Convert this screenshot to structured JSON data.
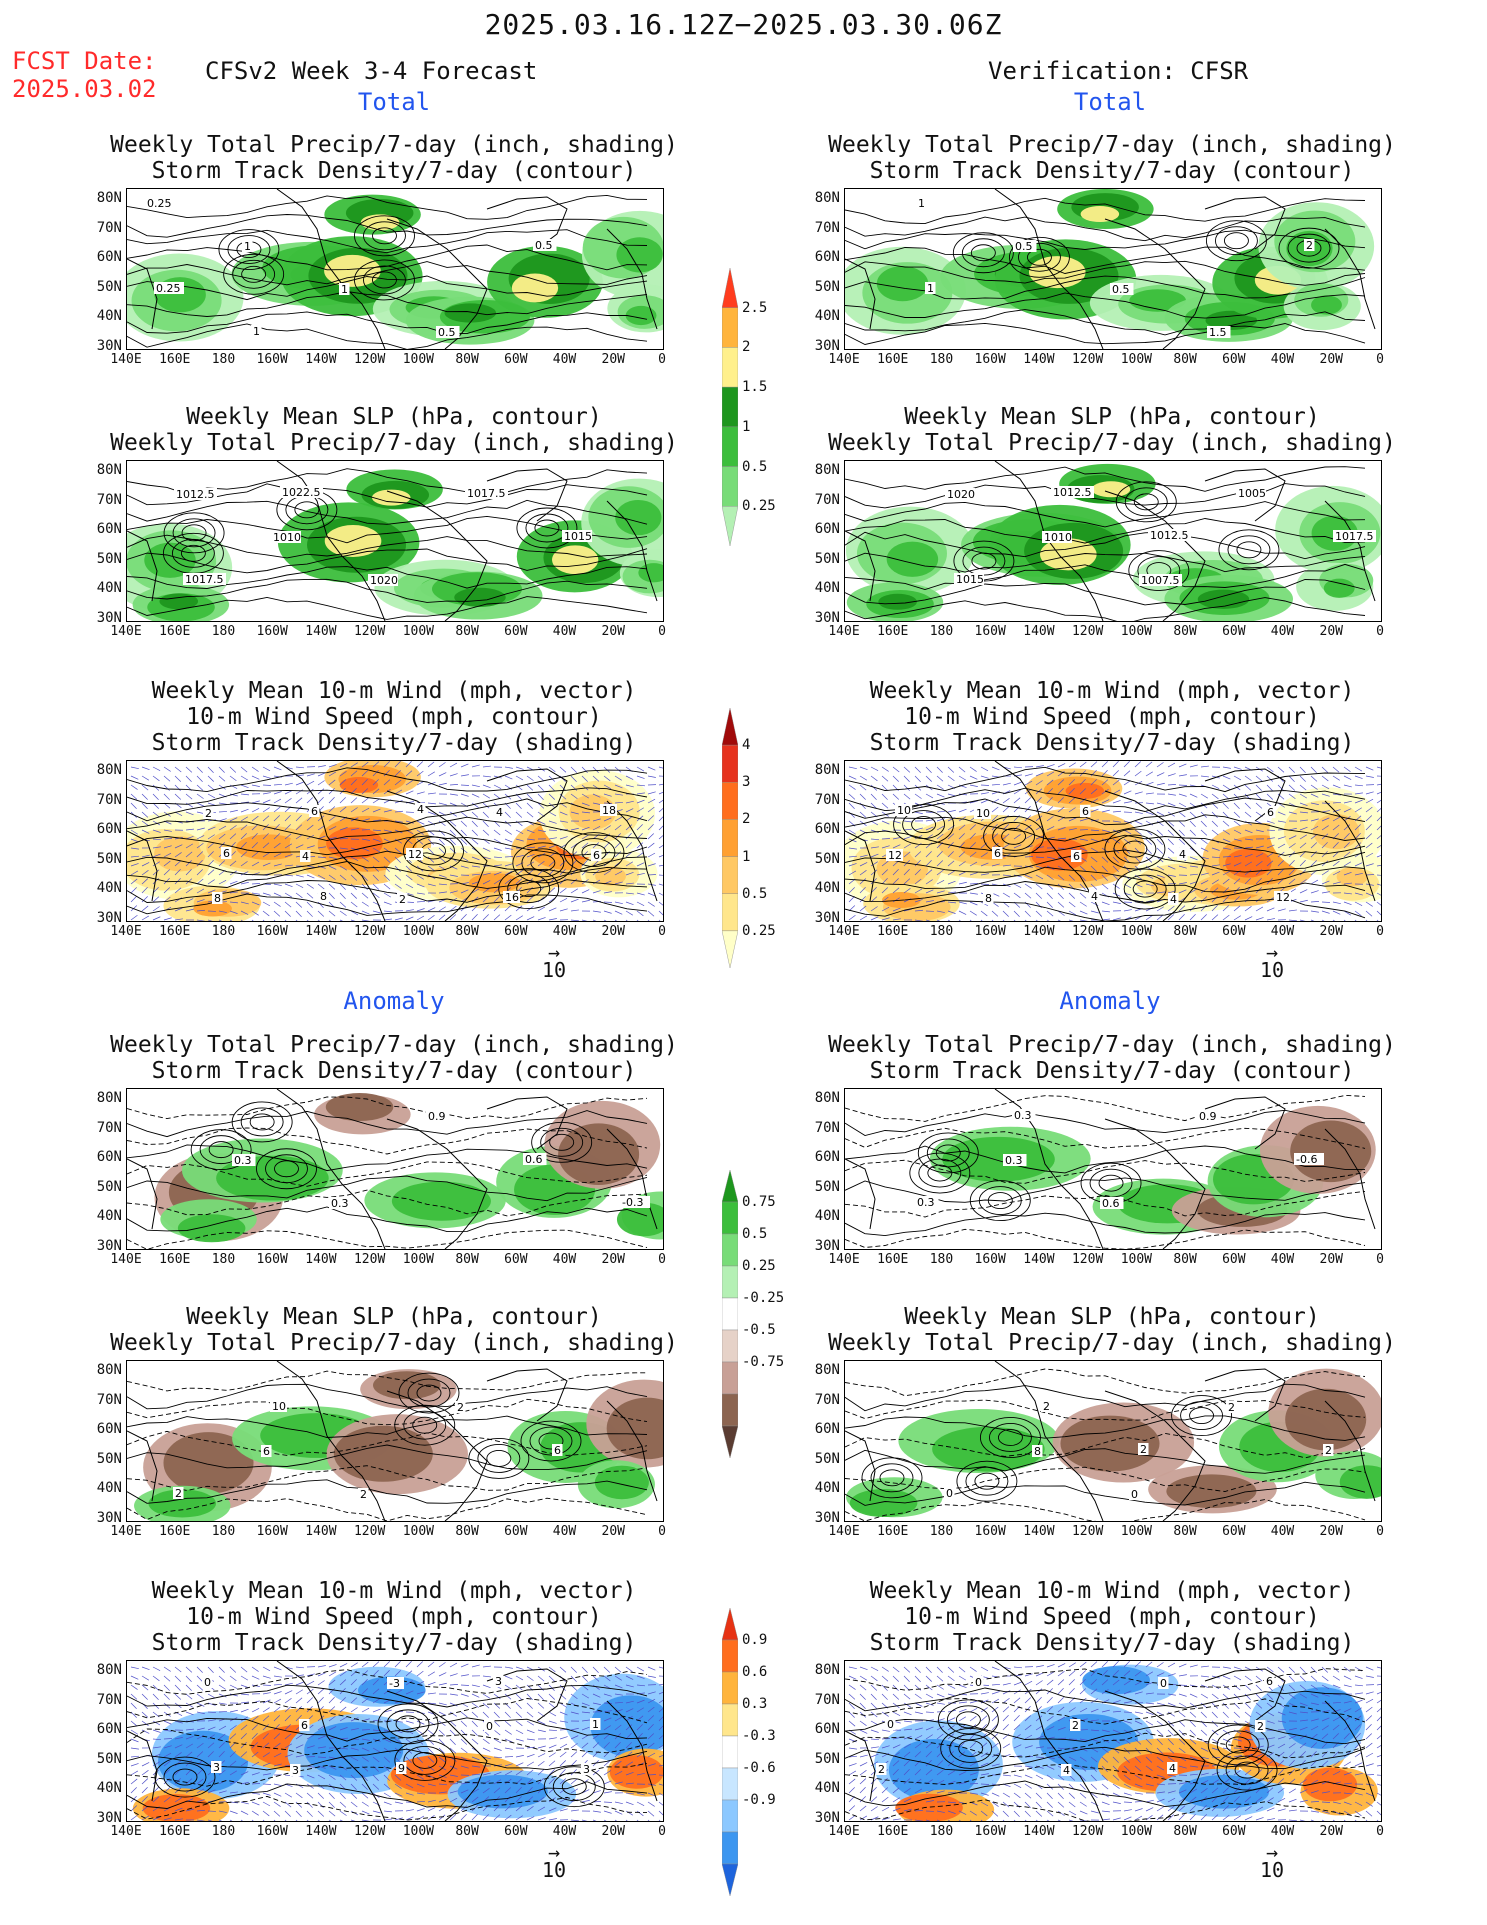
{
  "header": {
    "date_range": "2025.03.16.12Z−2025.03.30.06Z",
    "fcst_label": "FCST Date:",
    "fcst_date": "2025.03.02",
    "left_title": "CFSv2 Week 3-4 Forecast",
    "right_title": "Verification: CFSR"
  },
  "sections": {
    "total": "Total",
    "anomaly": "Anomaly"
  },
  "panel_titles": {
    "precip_storm": [
      "Weekly Total Precip/7-day (inch, shading)",
      "Storm Track Density/7-day (contour)"
    ],
    "slp_precip": [
      "Weekly Mean SLP (hPa, contour)",
      "Weekly Total Precip/7-day (inch, shading)"
    ],
    "wind_storm": [
      "Weekly Mean 10-m Wind (mph, vector)",
      "10-m Wind Speed (mph, contour)",
      "Storm Track Density/7-day (shading)"
    ]
  },
  "axes": {
    "lat": [
      "80N",
      "70N",
      "60N",
      "50N",
      "40N",
      "30N"
    ],
    "lon": [
      "140E",
      "160E",
      "180",
      "160W",
      "140W",
      "120W",
      "100W",
      "80W",
      "60W",
      "40W",
      "20W",
      "0"
    ]
  },
  "vector_ref": "10",
  "colorbars": {
    "precip_total": [
      "0.25",
      "0.5",
      "1",
      "1.5",
      "2",
      "2.5"
    ],
    "storm_total": [
      "0.25",
      "0.5",
      "1",
      "2",
      "3",
      "4"
    ],
    "precip_anom": [
      "-0.75",
      "-0.5",
      "-0.25",
      "0.25",
      "0.5",
      "0.75"
    ],
    "storm_anom": [
      "-0.9",
      "-0.6",
      "-0.3",
      "0.3",
      "0.6",
      "0.9"
    ]
  },
  "colors": {
    "precip_total": [
      "#b4f0b4",
      "#78dc78",
      "#3cbe3c",
      "#1e961e",
      "#fff08c",
      "#ffb43c",
      "#ff3c1e"
    ],
    "storm_total": [
      "#ffffc8",
      "#ffe68c",
      "#ffc864",
      "#ffa032",
      "#ff6e1e",
      "#e6321e",
      "#a00a0a"
    ],
    "precip_anom": [
      "#5a3c32",
      "#8c6450",
      "#c8a096",
      "#e6d2c8",
      "#ffffff",
      "#b4f0b4",
      "#78dc78",
      "#3cbe3c",
      "#1e961e"
    ],
    "storm_anom": [
      "#1e64dc",
      "#3c96f0",
      "#8cc8ff",
      "#c8e6ff",
      "#ffffff",
      "#ffe68c",
      "#ffb43c",
      "#ff6e1e",
      "#e63214"
    ]
  },
  "contour_labels": {
    "L1": [
      "0.25",
      "1",
      "1",
      "0.5",
      "0.5",
      "0.25",
      "1"
    ],
    "R1": [
      "1",
      "0.5",
      "0.5",
      "1.5",
      "2",
      "1"
    ],
    "L2": [
      "1012.5",
      "1010",
      "1020",
      "1017.5",
      "1015",
      "1017.5",
      "1022.5"
    ],
    "R2": [
      "1020",
      "1010",
      "1007.5",
      "1005",
      "1017.5",
      "1015",
      "1012.5",
      "1012.5"
    ],
    "L3": [
      "2",
      "4",
      "2",
      "4",
      "6",
      "8",
      "6",
      "12",
      "16",
      "18",
      "6",
      "8",
      "4"
    ],
    "R3": [
      "10",
      "6",
      "4",
      "6",
      "12",
      "8",
      "6",
      "4",
      "12",
      "10",
      "6",
      "4"
    ],
    "L4": [
      "0.3",
      "0.3",
      "0.9",
      "0.6",
      "-0.3"
    ],
    "R4": [
      "0.3",
      "0.6",
      "0.9",
      "-0.6",
      "0.3",
      "0.3"
    ],
    "L5": [
      "6",
      "2",
      "2",
      "6",
      "2",
      "10"
    ],
    "R5": [
      "8",
      "0",
      "2",
      "2",
      "0",
      "2",
      "2"
    ],
    "L6": [
      "3",
      "-3",
      "0",
      "3",
      "0",
      "6",
      "9",
      "3",
      "1",
      "3"
    ],
    "R6": [
      "4",
      "0",
      "2",
      "2",
      "0",
      "2",
      "4",
      "6",
      "0"
    ]
  }
}
